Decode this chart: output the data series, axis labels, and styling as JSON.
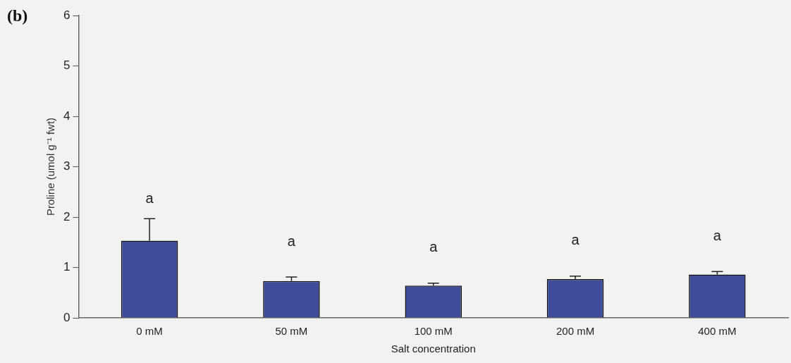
{
  "chart_data": {
    "type": "bar",
    "title": "(b)",
    "xlabel": "Salt concentration",
    "ylabel": "Proline (umol g⁻¹ fwt)",
    "categories": [
      "0 mM",
      "50 mM",
      "100 mM",
      "200 mM",
      "400 mM"
    ],
    "values": [
      1.53,
      0.73,
      0.64,
      0.77,
      0.86
    ],
    "errors": [
      [
        1.53,
        1.97
      ],
      [
        0.73,
        0.81
      ],
      [
        0.64,
        0.69
      ],
      [
        0.77,
        0.83
      ],
      [
        0.86,
        0.92
      ]
    ],
    "color": "#3f4c99",
    "ylim": [
      0,
      6
    ],
    "yticks": [
      0,
      1,
      2,
      3,
      4,
      5,
      6
    ],
    "grid": false,
    "legend": false,
    "annotations": [
      "a",
      "a",
      "a",
      "a",
      "a"
    ]
  }
}
